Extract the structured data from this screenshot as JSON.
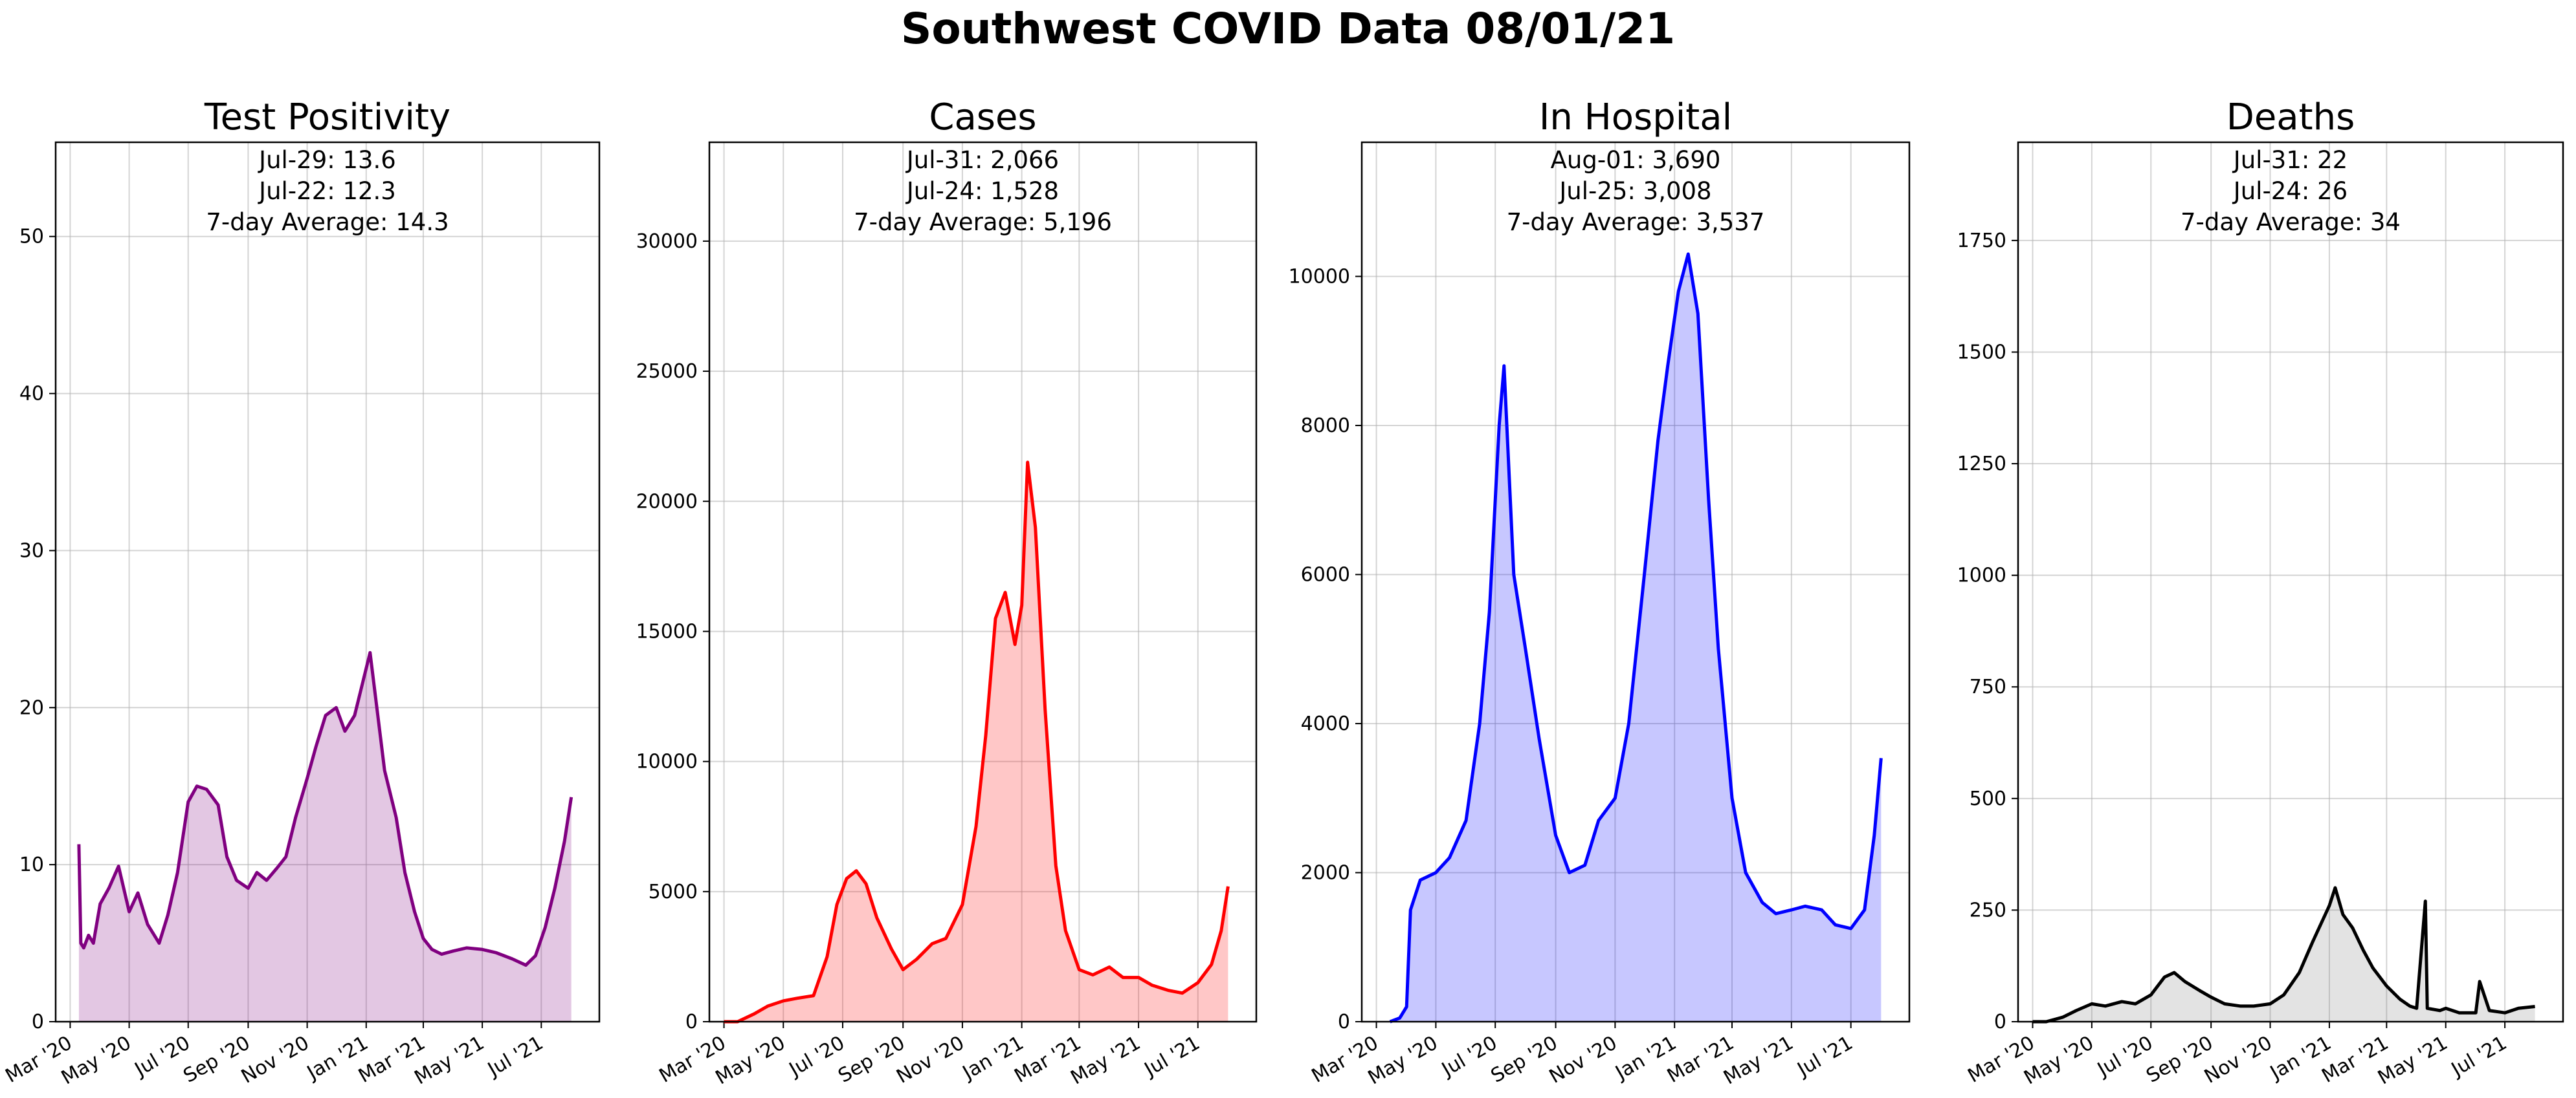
{
  "suptitle": "Southwest COVID Data 08/01/21",
  "x_tick_labels": [
    "Mar '20",
    "May '20",
    "Jul '20",
    "Sep '20",
    "Nov '20",
    "Jan '21",
    "Mar '21",
    "May '21",
    "Jul '21"
  ],
  "chart_data": [
    {
      "type": "line",
      "title": "Test Positivity",
      "annotations": [
        "Jul-29: 13.6",
        "Jul-22: 12.3",
        "7-day Average: 14.3"
      ],
      "colors": {
        "line": "#800080",
        "fill": "#800080"
      },
      "xlim": [
        "2020-02-15",
        "2021-08-30"
      ],
      "ylim": [
        0,
        56
      ],
      "yticks": [
        0,
        10,
        20,
        30,
        40,
        50
      ],
      "series": [
        {
          "x": [
            "2020-03-10",
            "2020-03-12",
            "2020-03-15",
            "2020-03-20",
            "2020-03-25",
            "2020-04-01",
            "2020-04-10",
            "2020-04-20",
            "2020-05-01",
            "2020-05-10",
            "2020-05-20",
            "2020-06-01",
            "2020-06-10",
            "2020-06-20",
            "2020-07-01",
            "2020-07-10",
            "2020-07-20",
            "2020-08-01",
            "2020-08-10",
            "2020-08-20",
            "2020-09-01",
            "2020-09-10",
            "2020-09-20",
            "2020-10-01",
            "2020-10-10",
            "2020-10-20",
            "2020-11-01",
            "2020-11-10",
            "2020-11-20",
            "2020-12-01",
            "2020-12-10",
            "2020-12-20",
            "2021-01-01",
            "2021-01-05",
            "2021-01-10",
            "2021-01-20",
            "2021-02-01",
            "2021-02-10",
            "2021-02-20",
            "2021-03-01",
            "2021-03-10",
            "2021-03-20",
            "2021-04-01",
            "2021-04-15",
            "2021-05-01",
            "2021-05-15",
            "2021-06-01",
            "2021-06-15",
            "2021-06-25",
            "2021-07-05",
            "2021-07-15",
            "2021-07-25",
            "2021-08-01"
          ],
          "y": [
            11.3,
            5.0,
            4.7,
            5.5,
            5.0,
            7.5,
            8.5,
            9.9,
            7.0,
            8.2,
            6.2,
            5.0,
            6.8,
            9.5,
            14.0,
            15.0,
            14.8,
            13.8,
            10.5,
            9.0,
            8.5,
            9.5,
            9.0,
            9.8,
            10.5,
            13.0,
            15.5,
            17.5,
            19.5,
            20.0,
            18.5,
            19.5,
            22.5,
            23.5,
            21.0,
            16.0,
            13.0,
            9.5,
            7.0,
            5.3,
            4.6,
            4.3,
            4.5,
            4.7,
            4.6,
            4.4,
            4.0,
            3.6,
            4.2,
            6.0,
            8.5,
            11.5,
            14.3
          ]
        }
      ]
    },
    {
      "type": "line",
      "title": "Cases",
      "annotations": [
        "Jul-31: 2,066",
        "Jul-24: 1,528",
        "7-day Average: 5,196"
      ],
      "colors": {
        "line": "#ff0000",
        "fill": "#ff0000"
      },
      "xlim": [
        "2020-02-15",
        "2021-08-30"
      ],
      "ylim": [
        0,
        33800
      ],
      "yticks": [
        0,
        5000,
        10000,
        15000,
        20000,
        25000,
        30000
      ],
      "series": [
        {
          "x": [
            "2020-03-01",
            "2020-03-15",
            "2020-04-01",
            "2020-04-15",
            "2020-05-01",
            "2020-05-15",
            "2020-06-01",
            "2020-06-15",
            "2020-06-25",
            "2020-07-05",
            "2020-07-15",
            "2020-07-25",
            "2020-08-05",
            "2020-08-20",
            "2020-09-01",
            "2020-09-15",
            "2020-10-01",
            "2020-10-15",
            "2020-11-01",
            "2020-11-15",
            "2020-11-25",
            "2020-12-05",
            "2020-12-15",
            "2020-12-25",
            "2021-01-01",
            "2021-01-07",
            "2021-01-15",
            "2021-01-25",
            "2021-02-05",
            "2021-02-15",
            "2021-03-01",
            "2021-03-15",
            "2021-04-01",
            "2021-04-15",
            "2021-05-01",
            "2021-05-15",
            "2021-06-01",
            "2021-06-15",
            "2021-07-01",
            "2021-07-15",
            "2021-07-25",
            "2021-08-01"
          ],
          "y": [
            0,
            0,
            300,
            600,
            800,
            900,
            1000,
            2500,
            4500,
            5500,
            5800,
            5300,
            4000,
            2800,
            2000,
            2400,
            3000,
            3200,
            4500,
            7500,
            11000,
            15500,
            16500,
            14500,
            16000,
            21500,
            19000,
            12000,
            6000,
            3500,
            2000,
            1800,
            2100,
            1700,
            1700,
            1400,
            1200,
            1100,
            1500,
            2200,
            3500,
            5200
          ]
        }
      ]
    },
    {
      "type": "line",
      "title": "In Hospital",
      "annotations": [
        "Aug-01: 3,690",
        "Jul-25: 3,008",
        "7-day Average: 3,537"
      ],
      "colors": {
        "line": "#0000ff",
        "fill": "#0000ff"
      },
      "xlim": [
        "2020-02-15",
        "2021-08-30"
      ],
      "ylim": [
        0,
        11800
      ],
      "yticks": [
        0,
        2000,
        4000,
        6000,
        8000,
        10000
      ],
      "series": [
        {
          "x": [
            "2020-03-15",
            "2020-03-25",
            "2020-04-01",
            "2020-04-05",
            "2020-04-15",
            "2020-05-01",
            "2020-05-15",
            "2020-06-01",
            "2020-06-15",
            "2020-06-25",
            "2020-07-05",
            "2020-07-10",
            "2020-07-20",
            "2020-08-01",
            "2020-08-15",
            "2020-09-01",
            "2020-09-15",
            "2020-10-01",
            "2020-10-15",
            "2020-11-01",
            "2020-11-15",
            "2020-12-01",
            "2020-12-15",
            "2020-12-25",
            "2021-01-05",
            "2021-01-15",
            "2021-01-25",
            "2021-02-05",
            "2021-02-15",
            "2021-03-01",
            "2021-03-15",
            "2021-04-01",
            "2021-04-15",
            "2021-05-01",
            "2021-05-15",
            "2021-06-01",
            "2021-06-15",
            "2021-07-01",
            "2021-07-15",
            "2021-07-25",
            "2021-08-01"
          ],
          "y": [
            0,
            50,
            200,
            1500,
            1900,
            2000,
            2200,
            2700,
            4000,
            5500,
            8000,
            8800,
            6000,
            5000,
            3800,
            2500,
            2000,
            2100,
            2700,
            3000,
            4000,
            6000,
            7800,
            8800,
            9800,
            10300,
            9500,
            7000,
            5000,
            3000,
            2000,
            1600,
            1450,
            1500,
            1550,
            1500,
            1300,
            1250,
            1500,
            2500,
            3537
          ]
        }
      ]
    },
    {
      "type": "line",
      "title": "Deaths",
      "annotations": [
        "Jul-31: 22",
        "Jul-24: 26",
        "7-day Average: 34"
      ],
      "colors": {
        "line": "#000000",
        "fill": "#808080"
      },
      "xlim": [
        "2020-02-15",
        "2021-08-30"
      ],
      "ylim": [
        0,
        1970
      ],
      "yticks": [
        0,
        250,
        500,
        750,
        1000,
        1250,
        1500,
        1750
      ],
      "series": [
        {
          "x": [
            "2020-03-01",
            "2020-03-15",
            "2020-04-01",
            "2020-04-15",
            "2020-05-01",
            "2020-05-15",
            "2020-06-01",
            "2020-06-15",
            "2020-07-01",
            "2020-07-15",
            "2020-07-25",
            "2020-08-05",
            "2020-08-20",
            "2020-09-01",
            "2020-09-15",
            "2020-10-01",
            "2020-10-15",
            "2020-11-01",
            "2020-11-15",
            "2020-12-01",
            "2020-12-15",
            "2021-01-01",
            "2021-01-07",
            "2021-01-15",
            "2021-01-25",
            "2021-02-05",
            "2021-02-15",
            "2021-03-01",
            "2021-03-15",
            "2021-03-25",
            "2021-04-01",
            "2021-04-10",
            "2021-04-12",
            "2021-04-25",
            "2021-05-01",
            "2021-05-15",
            "2021-06-01",
            "2021-06-05",
            "2021-06-15",
            "2021-07-01",
            "2021-07-15",
            "2021-08-01"
          ],
          "y": [
            0,
            0,
            10,
            25,
            40,
            35,
            45,
            40,
            60,
            100,
            110,
            90,
            70,
            55,
            40,
            35,
            35,
            40,
            60,
            110,
            180,
            260,
            300,
            240,
            210,
            160,
            120,
            80,
            50,
            35,
            30,
            270,
            30,
            25,
            30,
            20,
            20,
            90,
            25,
            20,
            30,
            34
          ]
        }
      ]
    }
  ]
}
